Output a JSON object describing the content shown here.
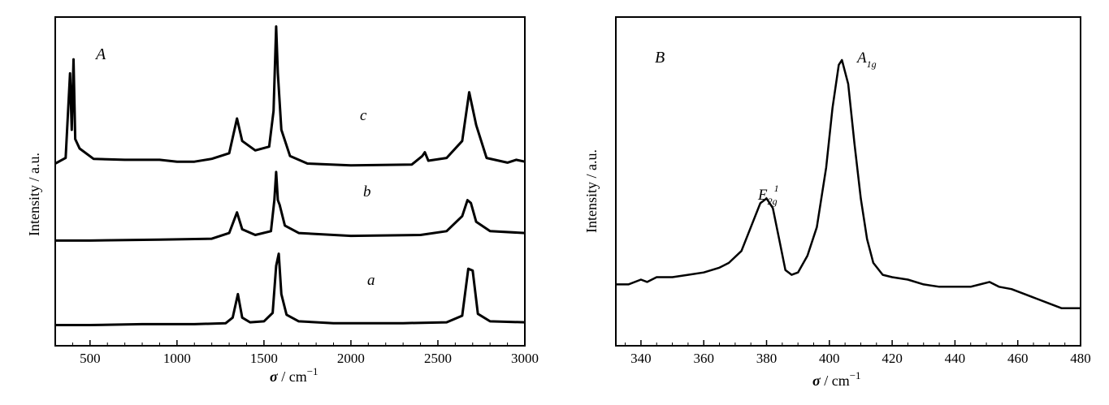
{
  "chart_data": [
    {
      "type": "line",
      "panel_label": "A",
      "xlabel_symbol": "σ",
      "xlabel_unit": " / cm",
      "xlabel_exp": "−1",
      "ylabel": "Intensity / a.u.",
      "xlim": [
        300,
        3000
      ],
      "xticks": [
        500,
        1000,
        1500,
        2000,
        2500,
        3000
      ],
      "y_ticks_labeled": false,
      "grid": false,
      "series": [
        {
          "name": "a",
          "offset": 0.0,
          "points": [
            [
              300,
              0.22
            ],
            [
              500,
              0.22
            ],
            [
              800,
              0.23
            ],
            [
              1100,
              0.23
            ],
            [
              1280,
              0.24
            ],
            [
              1320,
              0.3
            ],
            [
              1350,
              0.55
            ],
            [
              1375,
              0.3
            ],
            [
              1420,
              0.25
            ],
            [
              1500,
              0.26
            ],
            [
              1550,
              0.35
            ],
            [
              1570,
              0.85
            ],
            [
              1585,
              0.98
            ],
            [
              1600,
              0.55
            ],
            [
              1630,
              0.33
            ],
            [
              1700,
              0.26
            ],
            [
              1900,
              0.24
            ],
            [
              2300,
              0.24
            ],
            [
              2550,
              0.25
            ],
            [
              2640,
              0.32
            ],
            [
              2675,
              0.82
            ],
            [
              2700,
              0.8
            ],
            [
              2730,
              0.34
            ],
            [
              2800,
              0.26
            ],
            [
              3000,
              0.25
            ]
          ]
        },
        {
          "name": "b",
          "offset": 0.0,
          "points": [
            [
              300,
              1.12
            ],
            [
              500,
              1.12
            ],
            [
              900,
              1.13
            ],
            [
              1200,
              1.14
            ],
            [
              1300,
              1.2
            ],
            [
              1345,
              1.42
            ],
            [
              1375,
              1.24
            ],
            [
              1450,
              1.18
            ],
            [
              1540,
              1.22
            ],
            [
              1560,
              1.55
            ],
            [
              1570,
              1.85
            ],
            [
              1580,
              1.55
            ],
            [
              1590,
              1.5
            ],
            [
              1620,
              1.28
            ],
            [
              1700,
              1.2
            ],
            [
              2000,
              1.17
            ],
            [
              2400,
              1.18
            ],
            [
              2550,
              1.22
            ],
            [
              2640,
              1.38
            ],
            [
              2670,
              1.55
            ],
            [
              2690,
              1.52
            ],
            [
              2720,
              1.32
            ],
            [
              2800,
              1.22
            ],
            [
              3000,
              1.2
            ]
          ]
        },
        {
          "name": "c",
          "offset": 0.0,
          "points": [
            [
              300,
              1.94
            ],
            [
              360,
              2.0
            ],
            [
              385,
              2.9
            ],
            [
              395,
              2.3
            ],
            [
              405,
              3.05
            ],
            [
              415,
              2.2
            ],
            [
              440,
              2.1
            ],
            [
              520,
              1.99
            ],
            [
              700,
              1.98
            ],
            [
              900,
              1.98
            ],
            [
              1000,
              1.96
            ],
            [
              1100,
              1.96
            ],
            [
              1200,
              1.99
            ],
            [
              1300,
              2.05
            ],
            [
              1345,
              2.42
            ],
            [
              1375,
              2.18
            ],
            [
              1450,
              2.08
            ],
            [
              1530,
              2.12
            ],
            [
              1555,
              2.5
            ],
            [
              1570,
              3.4
            ],
            [
              1580,
              2.9
            ],
            [
              1600,
              2.3
            ],
            [
              1650,
              2.02
            ],
            [
              1750,
              1.94
            ],
            [
              2000,
              1.92
            ],
            [
              2350,
              1.93
            ],
            [
              2410,
              2.02
            ],
            [
              2425,
              2.06
            ],
            [
              2445,
              1.97
            ],
            [
              2550,
              2.0
            ],
            [
              2640,
              2.18
            ],
            [
              2680,
              2.7
            ],
            [
              2720,
              2.35
            ],
            [
              2780,
              2.0
            ],
            [
              2900,
              1.95
            ],
            [
              2950,
              1.98
            ],
            [
              3000,
              1.96
            ]
          ]
        }
      ],
      "annotations": [
        "a",
        "b",
        "c"
      ]
    },
    {
      "type": "line",
      "panel_label": "B",
      "xlabel_symbol": "σ",
      "xlabel_unit": " / cm",
      "xlabel_exp": "−1",
      "ylabel": "Intensity / a.u.",
      "xlim": [
        332,
        480
      ],
      "xticks": [
        340,
        360,
        380,
        400,
        420,
        440,
        460,
        480
      ],
      "y_ticks_labeled": false,
      "grid": false,
      "series": [
        {
          "name": "",
          "points": [
            [
              332,
              0.06
            ],
            [
              336,
              0.06
            ],
            [
              340,
              0.08
            ],
            [
              342,
              0.07
            ],
            [
              345,
              0.09
            ],
            [
              350,
              0.09
            ],
            [
              355,
              0.1
            ],
            [
              360,
              0.11
            ],
            [
              365,
              0.13
            ],
            [
              368,
              0.15
            ],
            [
              372,
              0.2
            ],
            [
              375,
              0.3
            ],
            [
              378,
              0.4
            ],
            [
              380,
              0.42
            ],
            [
              382,
              0.38
            ],
            [
              384,
              0.25
            ],
            [
              386,
              0.12
            ],
            [
              388,
              0.1
            ],
            [
              390,
              0.11
            ],
            [
              393,
              0.18
            ],
            [
              396,
              0.3
            ],
            [
              399,
              0.55
            ],
            [
              401,
              0.8
            ],
            [
              403,
              0.98
            ],
            [
              404,
              1.0
            ],
            [
              406,
              0.9
            ],
            [
              408,
              0.65
            ],
            [
              410,
              0.42
            ],
            [
              412,
              0.25
            ],
            [
              414,
              0.15
            ],
            [
              417,
              0.1
            ],
            [
              420,
              0.09
            ],
            [
              425,
              0.08
            ],
            [
              430,
              0.06
            ],
            [
              435,
              0.05
            ],
            [
              440,
              0.05
            ],
            [
              445,
              0.05
            ],
            [
              448,
              0.06
            ],
            [
              451,
              0.07
            ],
            [
              454,
              0.05
            ],
            [
              458,
              0.04
            ],
            [
              462,
              0.02
            ],
            [
              466,
              0.0
            ],
            [
              470,
              -0.02
            ],
            [
              474,
              -0.04
            ],
            [
              478,
              -0.04
            ],
            [
              480,
              -0.04
            ]
          ]
        }
      ],
      "annotations": [
        {
          "base": "E",
          "sub": "2g",
          "sup": "1"
        },
        {
          "base": "A",
          "sub": "1g"
        }
      ]
    }
  ]
}
